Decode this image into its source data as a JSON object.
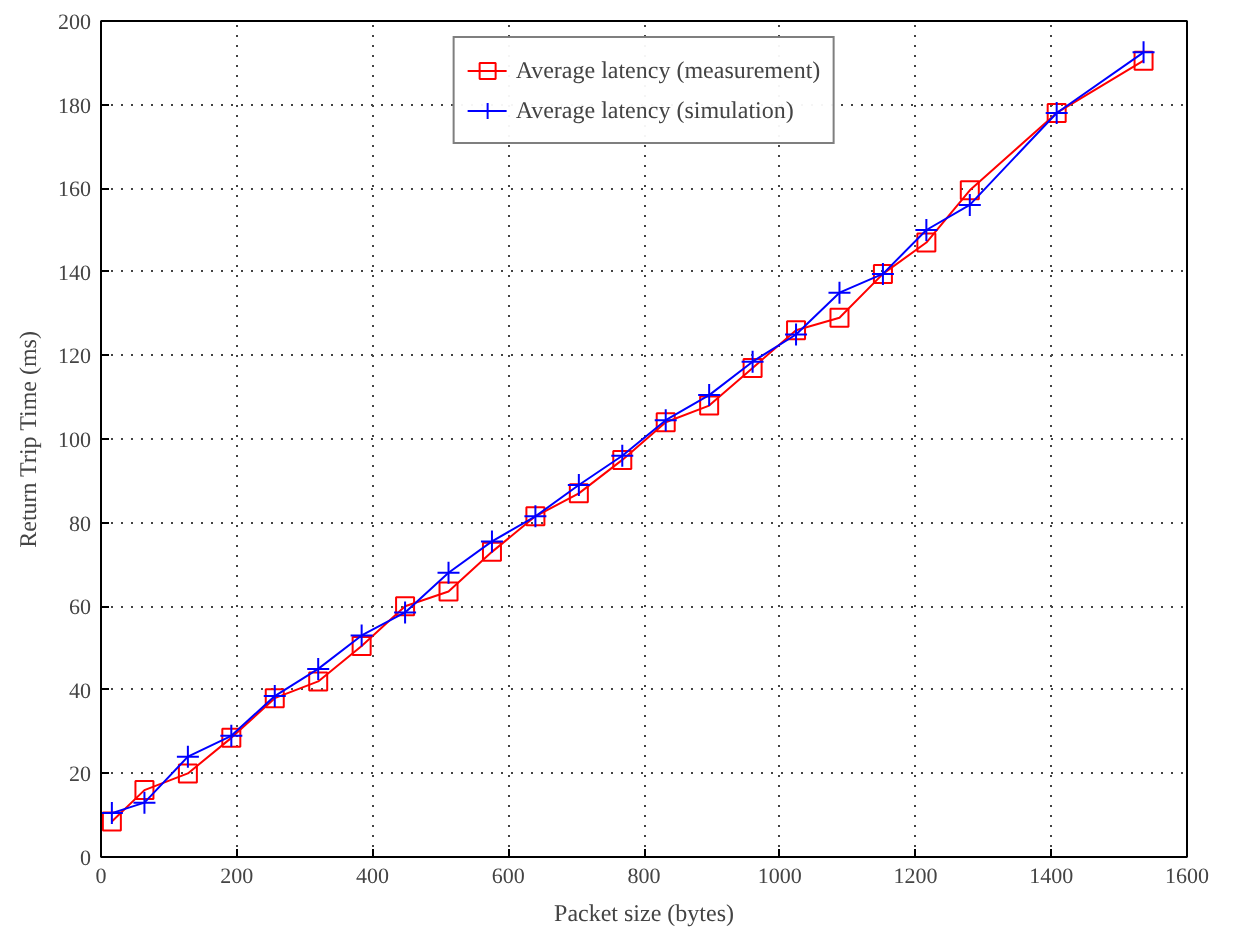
{
  "chart_data": {
    "type": "line",
    "xlabel": "Packet size (bytes)",
    "ylabel": "Return Trip Time (ms)",
    "x": [
      16,
      64,
      128,
      192,
      256,
      320,
      384,
      448,
      512,
      576,
      640,
      704,
      768,
      832,
      896,
      960,
      1024,
      1088,
      1152,
      1216,
      1280,
      1408,
      1536
    ],
    "series": [
      {
        "name": "Average latency (measurement)",
        "color": "#ff0000",
        "marker": "square",
        "values": [
          8.5,
          16,
          20,
          28.5,
          38,
          42,
          50.5,
          60,
          63.5,
          73,
          81.5,
          87,
          95,
          104,
          108,
          117,
          126,
          129,
          139.5,
          147,
          159.5,
          178,
          190.5
        ]
      },
      {
        "name": "Average latency (simulation)",
        "color": "#0000ff",
        "marker": "cross",
        "values": [
          10.5,
          13,
          24,
          29,
          38.5,
          45,
          53,
          58.5,
          68,
          75.5,
          81.5,
          89,
          96,
          104.5,
          110.5,
          118.5,
          125,
          135,
          139.5,
          150,
          156,
          178,
          192.5
        ]
      }
    ],
    "xlim": [
      0,
      1600
    ],
    "xticks": [
      0,
      200,
      400,
      600,
      800,
      1000,
      1200,
      1400,
      1600
    ],
    "ylim": [
      0,
      200
    ],
    "yticks": [
      0,
      20,
      40,
      60,
      80,
      100,
      120,
      140,
      160,
      180,
      200
    ],
    "grid": true,
    "legend": "top",
    "line_style": "solid"
  }
}
